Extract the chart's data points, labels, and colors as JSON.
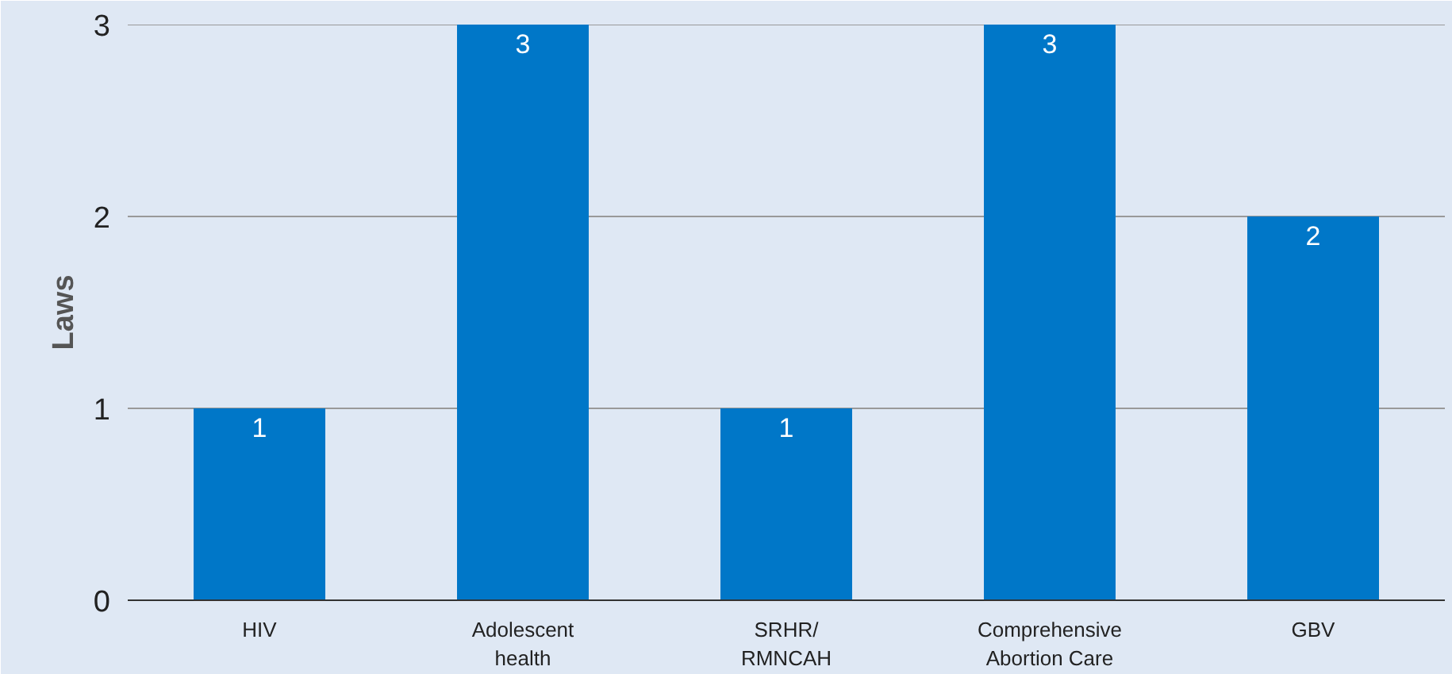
{
  "chart_data": {
    "type": "bar",
    "ylabel": "Laws",
    "categories": [
      "HIV",
      "Adolescent\nhealth",
      "SRHR/\nRMNCAH",
      "Comprehensive\nAbortion Care",
      "GBV"
    ],
    "values": [
      1,
      3,
      1,
      3,
      2
    ],
    "color": "#0077c8",
    "ylim": [
      0,
      3
    ],
    "yticks": [
      0,
      1,
      2,
      3
    ],
    "grid": "y",
    "data_labels": true
  }
}
